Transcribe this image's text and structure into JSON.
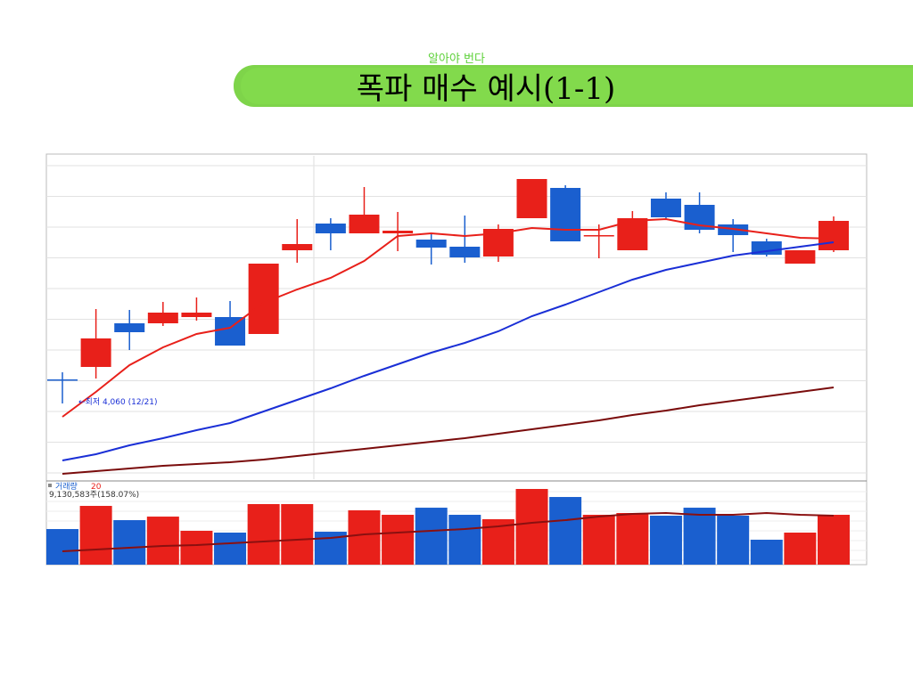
{
  "chart_data": [
    {
      "type": "candlestick",
      "title": "폭파 매수 예시(1-1)",
      "subtitle": "알아야 번다",
      "annotation": "←최저 4,060 (12/21)",
      "categories": [
        null,
        null,
        null,
        null,
        null,
        null,
        null,
        null,
        null,
        null,
        null,
        null,
        null,
        null,
        null,
        null,
        null,
        null,
        null,
        null,
        null,
        null,
        null,
        null
      ],
      "open": [
        4330,
        4470,
        4960,
        4960,
        5030,
        5030,
        4840,
        5780,
        6080,
        5970,
        5970,
        5900,
        5820,
        5710,
        6140,
        6480,
        5950,
        5780,
        6360,
        6290,
        6070,
        5880,
        5630,
        5780
      ],
      "close": [
        4330,
        4790,
        4860,
        5080,
        5080,
        4710,
        5630,
        5850,
        5970,
        6180,
        6000,
        5810,
        5700,
        6020,
        6580,
        5880,
        5950,
        6140,
        6150,
        6010,
        5950,
        5730,
        5780,
        6110
      ],
      "high": [
        4410,
        5120,
        5110,
        5200,
        5250,
        5210,
        5630,
        6130,
        6140,
        6490,
        6210,
        5970,
        6170,
        6070,
        6580,
        6510,
        6070,
        6220,
        6430,
        6430,
        6130,
        5910,
        5780,
        6160
      ],
      "low": [
        4060,
        4340,
        4660,
        4930,
        4990,
        4710,
        4840,
        5640,
        5780,
        5970,
        5770,
        5620,
        5640,
        5650,
        6140,
        5880,
        5690,
        5780,
        6130,
        5970,
        5760,
        5710,
        5630,
        5760
      ],
      "colors": [
        "#1a5fcf",
        "#e8201a",
        "#1a5fcf",
        "#e8201a",
        "#e8201a",
        "#1a5fcf",
        "#e8201a",
        "#e8201a",
        "#1a5fcf",
        "#e8201a",
        "#e8201a",
        "#1a5fcf",
        "#1a5fcf",
        "#e8201a",
        "#e8201a",
        "#1a5fcf",
        "#e8201a",
        "#e8201a",
        "#1a5fcf",
        "#1a5fcf",
        "#1a5fcf",
        "#1a5fcf",
        "#e8201a",
        "#e8201a"
      ],
      "ylim": [
        3240,
        6840
      ],
      "series": [
        {
          "color": "#e8201a",
          "values": [
            3910,
            4190,
            4490,
            4690,
            4840,
            4910,
            5190,
            5340,
            5470,
            5660,
            5940,
            5970,
            5940,
            5970,
            6030,
            6010,
            6010,
            6110,
            6130,
            6060,
            6020,
            5970,
            5920,
            5910
          ]
        },
        {
          "color": "#1a2fd6",
          "values": [
            3420,
            3490,
            3590,
            3670,
            3760,
            3840,
            3970,
            4100,
            4230,
            4370,
            4500,
            4630,
            4740,
            4870,
            5040,
            5170,
            5310,
            5450,
            5560,
            5640,
            5720,
            5770,
            5820,
            5870
          ]
        },
        {
          "color": "#7a0c0c",
          "values": [
            3270,
            3300,
            3330,
            3360,
            3380,
            3400,
            3430,
            3470,
            3510,
            3550,
            3590,
            3630,
            3670,
            3720,
            3770,
            3820,
            3870,
            3930,
            3980,
            4040,
            4090,
            4140,
            4190,
            4240
          ]
        }
      ]
    },
    {
      "type": "bar",
      "label": "거래량",
      "ma_label": "20",
      "value_text": "9,130,583주(158.07%)",
      "categories": [
        null,
        null,
        null,
        null,
        null,
        null,
        null,
        null,
        null,
        null,
        null,
        null,
        null,
        null,
        null,
        null,
        null,
        null,
        null,
        null,
        null,
        null,
        null,
        null
      ],
      "values": [
        6520000,
        10760000,
        8150000,
        8800000,
        6200000,
        5870000,
        11090000,
        11090000,
        6030000,
        9950000,
        9130000,
        10430000,
        9130000,
        8320000,
        13860000,
        12390000,
        9130000,
        9460000,
        8970000,
        10430000,
        8970000,
        4570000,
        5870000,
        9130583
      ],
      "colors": [
        "#1a5fcf",
        "#e8201a",
        "#1a5fcf",
        "#e8201a",
        "#e8201a",
        "#1a5fcf",
        "#e8201a",
        "#e8201a",
        "#1a5fcf",
        "#e8201a",
        "#e8201a",
        "#1a5fcf",
        "#1a5fcf",
        "#e8201a",
        "#e8201a",
        "#1a5fcf",
        "#e8201a",
        "#e8201a",
        "#1a5fcf",
        "#1a5fcf",
        "#1a5fcf",
        "#1a5fcf",
        "#e8201a",
        "#e8201a"
      ],
      "ylim": [
        0,
        15330000
      ],
      "series": [
        {
          "color": "#8a1010",
          "values": [
            2445000,
            2771000,
            3097000,
            3423000,
            3586000,
            3912000,
            4238000,
            4564000,
            4890000,
            5542000,
            5868000,
            6194000,
            6520000,
            7009000,
            7661000,
            8150000,
            8802000,
            9291000,
            9454000,
            9128000,
            9128000,
            9454000,
            9128000,
            8965000
          ]
        }
      ]
    }
  ]
}
